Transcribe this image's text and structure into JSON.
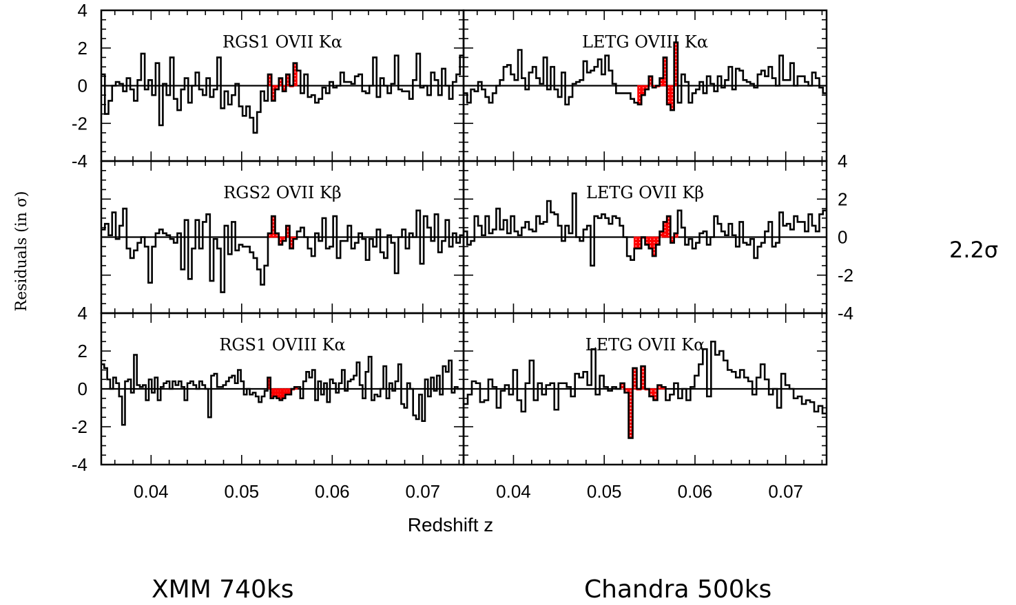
{
  "y_axis_label": "Residuals (in σ)",
  "x_axis_label": "Redshift z",
  "side_note": "2.2σ",
  "captions": {
    "left": "XMM 740ks",
    "right": "Chandra 500ks"
  },
  "colors": {
    "data": "#000000",
    "highlight": "#ff0000",
    "background": "#ffffff"
  },
  "chart_data": [
    {
      "type": "line",
      "panel_label": "RGS1  OVII  Kα",
      "ylim": [
        -4,
        4
      ],
      "xlim": [
        0.0345,
        0.0745
      ],
      "y_tick_labels": [
        "4",
        "2",
        "0",
        "-2",
        "-4"
      ],
      "highlight_range": [
        0.0528,
        0.0562
      ],
      "values": [
        0.6,
        -1.5,
        -0.8,
        0.0,
        0.2,
        0.1,
        -0.3,
        0.4,
        -0.2,
        -0.8,
        0.3,
        1.7,
        -0.2,
        0.3,
        -0.5,
        1.2,
        -2.1,
        0.1,
        -0.5,
        1.5,
        -0.7,
        -1.3,
        -0.2,
        0.4,
        -0.9,
        0.0,
        0.7,
        -0.2,
        -0.5,
        0.4,
        -0.6,
        -0.2,
        1.5,
        -1.2,
        -0.3,
        -1.0,
        -0.5,
        0.1,
        -1.1,
        -1.6,
        -1.1,
        -1.7,
        -2.5,
        -1.4,
        -0.3,
        -0.8,
        0.6,
        -0.8,
        -0.2,
        0.4,
        -0.3,
        0.6,
        0.0,
        1.2,
        0.8,
        -0.4,
        0.6,
        -0.6,
        -0.5,
        -0.9,
        -0.7,
        -0.1,
        -0.4,
        0.2,
        -0.1,
        0.0,
        0.7,
        0.2,
        0.2,
        0.1,
        0.5,
        0.6,
        -0.3,
        -0.4,
        0.0,
        1.5,
        -0.6,
        0.4,
        0.0,
        -0.4,
        0.1,
        1.6,
        -0.2,
        -0.3,
        -0.3,
        -0.7,
        0.3,
        1.7,
        -0.1,
        0.0,
        -0.5,
        0.7,
        0.3,
        -0.5,
        0.9,
        0.0,
        -0.7,
        0.2,
        0.6,
        1.6
      ]
    },
    {
      "type": "line",
      "panel_label": "LETG  OVIII  Kα",
      "ylim": [
        -4,
        4
      ],
      "xlim": [
        0.0345,
        0.0745
      ],
      "y_tick_labels": [],
      "highlight_range": [
        0.0536,
        0.058
      ],
      "values": [
        -0.4,
        -0.9,
        -0.2,
        -0.3,
        0.2,
        -0.2,
        -0.6,
        -0.9,
        -0.4,
        0.0,
        0.3,
        1.0,
        1.1,
        0.6,
        0.3,
        1.9,
        0.4,
        -0.2,
        0.7,
        1.0,
        0.4,
        0.1,
        1.5,
        -0.2,
        1.0,
        -0.2,
        -0.6,
        0.7,
        -1.0,
        -0.6,
        0.1,
        0.2,
        0.3,
        1.3,
        0.7,
        0.8,
        1.0,
        1.4,
        0.6,
        1.6,
        0.8,
        0.1,
        -0.4,
        -0.4,
        -0.4,
        -0.4,
        -0.7,
        -0.9,
        -1.0,
        -0.5,
        -0.2,
        0.5,
        -0.1,
        0.0,
        0.4,
        1.5,
        -1.0,
        -1.3,
        2.3,
        -0.9,
        0.6,
        0.2,
        -0.9,
        -0.4,
        -0.2,
        0.2,
        -0.4,
        0.5,
        0.1,
        -0.3,
        0.5,
        -0.1,
        0.3,
        1.0,
        -0.2,
        0.9,
        0.8,
        0.3,
        0.2,
        0.1,
        -0.1,
        0.6,
        0.8,
        0.5,
        1.0,
        0.4,
        0.0,
        1.6,
        0.3,
        0.3,
        1.2,
        0.0,
        0.5,
        0.5,
        0.2,
        0.0,
        0.7,
        0.4,
        -0.1,
        -0.4
      ]
    },
    {
      "type": "line",
      "panel_label": "RGS2  OVII  Kβ",
      "ylim": [
        -4,
        4
      ],
      "xlim": [
        0.0345,
        0.0745
      ],
      "y_tick_labels": [],
      "highlight_range": [
        0.0528,
        0.0562
      ],
      "values": [
        0.4,
        0.7,
        0.1,
        1.3,
        -0.1,
        0.6,
        1.5,
        -0.6,
        -1.1,
        -0.7,
        -0.3,
        0.0,
        -0.5,
        -2.4,
        -0.5,
        0.2,
        0.4,
        0.2,
        0.1,
        -0.1,
        -0.3,
        0.2,
        -1.7,
        0.9,
        -2.2,
        -0.6,
        0.9,
        -0.6,
        0.8,
        1.2,
        -2.3,
        -0.1,
        -0.6,
        -2.9,
        0.6,
        -0.9,
        0.8,
        -0.7,
        -0.4,
        -0.5,
        -0.5,
        -0.8,
        -1.1,
        -1.7,
        -2.5,
        -1.5,
        0.2,
        1.1,
        0.2,
        -0.4,
        -0.2,
        0.6,
        -0.6,
        -0.1,
        0.3,
        0.5,
        0.0,
        -0.6,
        -1.0,
        0.2,
        -0.2,
        1.0,
        -0.6,
        -0.5,
        1.1,
        -1.1,
        -0.2,
        -0.2,
        0.6,
        -0.6,
        -0.3,
        0.2,
        -0.1,
        -1.2,
        -0.1,
        -0.5,
        0.4,
        -0.8,
        -1.1,
        0.1,
        -0.3,
        -1.9,
        0.0,
        0.4,
        -0.6,
        0.2,
        0.0,
        1.4,
        -1.4,
        1.1,
        0.5,
        -0.2,
        1.2,
        -0.8,
        -0.2,
        0.9,
        -0.5,
        0.2,
        -0.3,
        0.1
      ]
    },
    {
      "type": "line",
      "panel_label": "LETG  OVII  Kβ",
      "ylim": [
        -4,
        4
      ],
      "xlim": [
        0.0345,
        0.0745
      ],
      "y_tick_labels": [
        "4",
        "2",
        "0",
        "-2",
        "-4"
      ],
      "highlight_range": [
        0.0532,
        0.058
      ],
      "values": [
        0.3,
        -0.4,
        -0.2,
        1.1,
        0.6,
        0.1,
        1.1,
        0.2,
        0.4,
        1.5,
        0.4,
        0.9,
        0.2,
        1.1,
        0.3,
        0.1,
        0.5,
        0.8,
        0.4,
        0.3,
        1.1,
        0.7,
        0.8,
        1.9,
        1.3,
        1.2,
        0.6,
        -0.2,
        0.6,
        0.2,
        2.3,
        0.0,
        -0.2,
        0.4,
        0.6,
        -1.5,
        1.1,
        1.0,
        1.2,
        1.0,
        0.7,
        1.1,
        1.0,
        0.6,
        0.0,
        -1.0,
        -1.2,
        -0.6,
        -0.6,
        0.0,
        -0.4,
        -0.6,
        -1.0,
        -0.4,
        0.3,
        0.8,
        1.1,
        -0.3,
        0.2,
        1.4,
        0.5,
        -0.4,
        -0.1,
        -0.6,
        -0.3,
        0.2,
        0.3,
        -0.4,
        0.0,
        1.1,
        0.7,
        0.3,
        0.1,
        0.7,
        0.1,
        -0.5,
        0.8,
        -0.3,
        -0.4,
        -0.1,
        -1.1,
        -0.5,
        -0.3,
        0.3,
        0.8,
        -0.5,
        -0.3,
        1.3,
        0.6,
        0.7,
        0.4,
        1.1,
        0.8,
        0.8,
        0.3,
        1.2,
        0.6,
        0.3,
        1.2,
        1.4
      ]
    },
    {
      "type": "line",
      "panel_label": "RGS1  OVIII  Kα",
      "ylim": [
        -4,
        4
      ],
      "xlim": [
        0.0345,
        0.0745
      ],
      "y_tick_labels": [
        "4",
        "2",
        "0",
        "-2",
        "-4"
      ],
      "highlight_range": [
        0.0528,
        0.0562
      ],
      "values": [
        1.3,
        1.1,
        0.5,
        0.0,
        0.6,
        0.3,
        -0.4,
        -1.9,
        0.4,
        0.5,
        -0.2,
        1.8,
        0.2,
        0.1,
        0.2,
        -0.6,
        0.5,
        -0.2,
        0.6,
        -0.6,
        0.1,
        0.3,
        0.4,
        0.0,
        0.4,
        0.2,
        0.4,
        0.1,
        -0.6,
        0.3,
        0.4,
        0.2,
        0.0,
        0.4,
        0.2,
        0.0,
        -1.5,
        0.7,
        0.8,
        0.1,
        0.1,
        0.2,
        0.4,
        0.6,
        0.7,
        0.3,
        1.0,
        0.4,
        -0.3,
        0.0,
        -0.3,
        -0.2,
        -0.4,
        -0.7,
        -0.4,
        -0.1,
        0.6,
        -0.5,
        -0.4,
        -0.5,
        -0.6,
        -0.5,
        -0.3,
        -0.3,
        0.0,
        0.1,
        0.1,
        -0.5,
        0.4,
        0.9,
        0.6,
        1.0,
        -0.6,
        0.4,
        -0.3,
        0.3,
        -0.7,
        0.5,
        0.3,
        -0.2,
        0.3,
        1.0,
        -0.1,
        0.4,
        0.5,
        0.7,
        1.4,
        0.2,
        -0.5,
        0.9,
        1.7,
        -0.6,
        -0.3,
        -0.4,
        0.0,
        1.2,
        -0.5,
        0.3,
        -0.1,
        0.4,
        1.3,
        -0.8,
        -1.0,
        0.3,
        0.0,
        -1.4,
        -1.6,
        -0.3,
        -1.7,
        0.5,
        -0.4,
        0.6,
        -0.1,
        0.7,
        -0.3,
        1.2,
        0.9,
        1.5,
        -0.2,
        0.1,
        0.0,
        0.0
      ]
    },
    {
      "type": "line",
      "panel_label": "LETG  OVII  Kα",
      "ylim": [
        -4,
        4
      ],
      "xlim": [
        0.0345,
        0.0745
      ],
      "y_tick_labels": [],
      "highlight_range": [
        0.0518,
        0.0568
      ],
      "values": [
        -0.8,
        -0.3,
        0.4,
        0.3,
        -0.7,
        -0.6,
        0.5,
        0.1,
        -1.0,
        -0.1,
        0.2,
        -0.3,
        1.0,
        -0.6,
        -1.2,
        0.3,
        1.5,
        -0.6,
        0.3,
        -0.3,
        0.2,
        0.3,
        -1.1,
        0.3,
        0.3,
        0.1,
        -0.4,
        0.8,
        0.6,
        0.9,
        0.2,
        2.1,
        -0.3,
        0.7,
        0.1,
        -0.1,
        0.1,
        0.0,
        0.3,
        -0.2,
        -2.6,
        1.1,
        0.0,
        1.2,
        0.0,
        -0.4,
        -0.6,
        0.2,
        0.1,
        -0.6,
        -0.3,
        0.3,
        -0.5,
        0.0,
        -0.6,
        0.1,
        0.7,
        1.3,
        2.1,
        -0.4,
        2.5,
        1.8,
        2.0,
        1.5,
        1.0,
        0.9,
        0.6,
        1.0,
        0.6,
        0.4,
        -0.3,
        0.6,
        1.3,
        0.5,
        -0.3,
        0.0,
        -1.0,
        0.8,
        0.2,
        0.0,
        -0.5,
        -0.4,
        -0.8,
        -0.6,
        -0.7,
        -1.2,
        -0.9,
        -1.3
      ]
    }
  ]
}
